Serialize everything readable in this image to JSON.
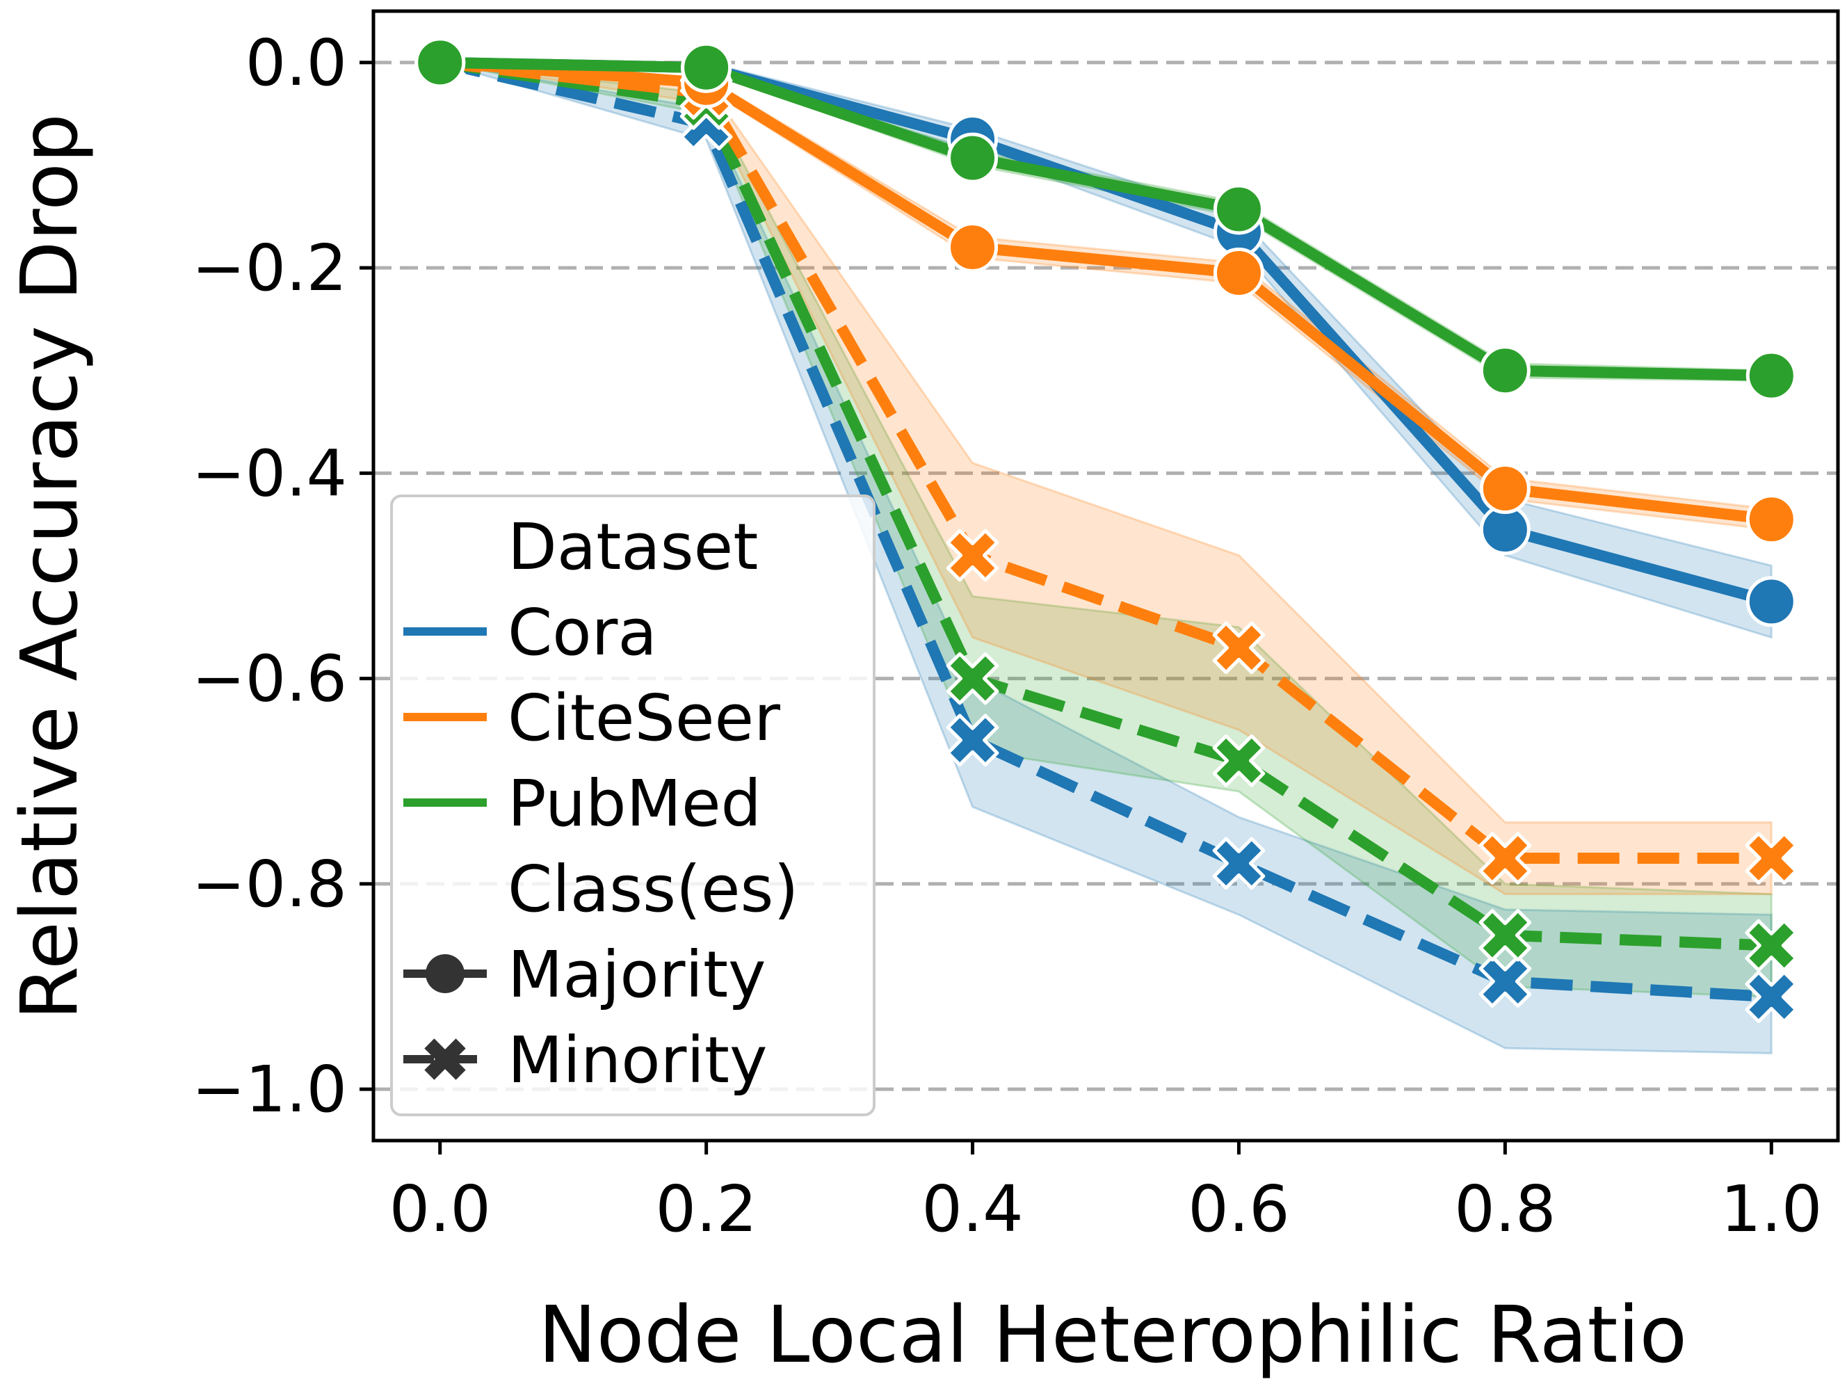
{
  "chart_data": {
    "type": "line",
    "xlabel": "Node Local Heterophilic Ratio",
    "ylabel": "Relative Accuracy Drop",
    "xlim": [
      -0.05,
      1.05
    ],
    "ylim": [
      -1.05,
      0.05
    ],
    "x_ticks": [
      "0.0",
      "0.2",
      "0.4",
      "0.6",
      "0.8",
      "1.0"
    ],
    "y_ticks": [
      "0.0",
      "−0.2",
      "−0.4",
      "−0.6",
      "−0.8",
      "−1.0"
    ],
    "grid": "horizontal dashed",
    "legend_placement": "lower-left",
    "legend": {
      "hue_title": "Dataset",
      "style_title": "Class(es)",
      "datasets": [
        {
          "name": "Cora",
          "color": "#1f77b4"
        },
        {
          "name": "CiteSeer",
          "color": "#ff7f0e"
        },
        {
          "name": "PubMed",
          "color": "#2ca02c"
        }
      ],
      "classes": [
        {
          "name": "Majority",
          "marker": "circle",
          "dash": "solid"
        },
        {
          "name": "Minority",
          "marker": "x",
          "dash": "dashed"
        }
      ]
    },
    "x": [
      0.0,
      0.2,
      0.4,
      0.6,
      0.8,
      1.0
    ],
    "series": [
      {
        "dataset": "Cora",
        "cls": "Minority",
        "color": "#1f77b4",
        "values": [
          0.0,
          -0.06,
          -0.66,
          -0.78,
          -0.895,
          -0.91
        ],
        "band_low": [
          0.0,
          -0.075,
          -0.725,
          -0.83,
          -0.96,
          -0.965
        ],
        "band_high": [
          0.0,
          -0.045,
          -0.6,
          -0.735,
          -0.825,
          -0.83
        ]
      },
      {
        "dataset": "PubMed",
        "cls": "Minority",
        "color": "#2ca02c",
        "values": [
          0.0,
          -0.04,
          -0.6,
          -0.68,
          -0.85,
          -0.86
        ],
        "band_low": [
          0.0,
          -0.05,
          -0.67,
          -0.71,
          -0.9,
          -0.91
        ],
        "band_high": [
          0.0,
          -0.03,
          -0.52,
          -0.55,
          -0.8,
          -0.81
        ]
      },
      {
        "dataset": "CiteSeer",
        "cls": "Minority",
        "color": "#ff7f0e",
        "values": [
          0.0,
          -0.03,
          -0.48,
          -0.57,
          -0.775,
          -0.775
        ],
        "band_low": [
          0.0,
          -0.04,
          -0.56,
          -0.65,
          -0.81,
          -0.81
        ],
        "band_high": [
          0.0,
          -0.02,
          -0.39,
          -0.48,
          -0.74,
          -0.74
        ]
      },
      {
        "dataset": "Cora",
        "cls": "Majority",
        "color": "#1f77b4",
        "values": [
          0.0,
          -0.005,
          -0.075,
          -0.165,
          -0.455,
          -0.525
        ],
        "band_low": [
          0.0,
          -0.01,
          -0.085,
          -0.18,
          -0.48,
          -0.56
        ],
        "band_high": [
          0.0,
          0.0,
          -0.065,
          -0.15,
          -0.425,
          -0.49
        ]
      },
      {
        "dataset": "CiteSeer",
        "cls": "Majority",
        "color": "#ff7f0e",
        "values": [
          0.0,
          -0.02,
          -0.18,
          -0.205,
          -0.415,
          -0.445
        ],
        "band_low": [
          0.0,
          -0.025,
          -0.19,
          -0.215,
          -0.425,
          -0.455
        ],
        "band_high": [
          0.0,
          -0.015,
          -0.17,
          -0.195,
          -0.405,
          -0.435
        ]
      },
      {
        "dataset": "PubMed",
        "cls": "Majority",
        "color": "#2ca02c",
        "values": [
          0.0,
          -0.005,
          -0.093,
          -0.143,
          -0.3,
          -0.305
        ],
        "band_low": [
          0.0,
          -0.008,
          -0.1,
          -0.15,
          -0.307,
          -0.31
        ],
        "band_high": [
          0.0,
          -0.002,
          -0.086,
          -0.136,
          -0.293,
          -0.3
        ]
      }
    ]
  }
}
